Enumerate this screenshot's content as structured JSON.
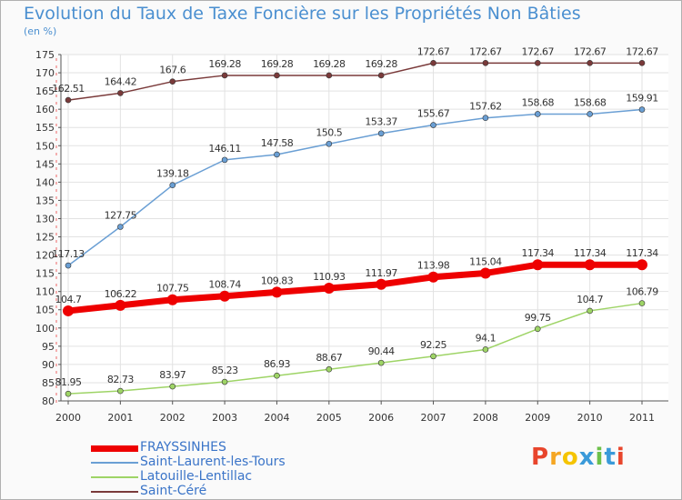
{
  "title": "Evolution du Taux de Taxe Foncière sur les Propriétés Non Bâties",
  "unit_label": "(en %)",
  "logo": {
    "text": "Proxiti",
    "letters": [
      {
        "ch": "P",
        "color": "#e8452c"
      },
      {
        "ch": "r",
        "color": "#f5a623"
      },
      {
        "ch": "o",
        "color": "#f5c400"
      },
      {
        "ch": "x",
        "color": "#3a9ad9"
      },
      {
        "ch": "i",
        "color": "#6cc04a"
      },
      {
        "ch": "t",
        "color": "#3a9ad9"
      },
      {
        "ch": "i",
        "color": "#e8452c"
      }
    ]
  },
  "chart_data": {
    "type": "line",
    "title": "Evolution du Taux de Taxe Foncière sur les Propriétés Non Bâties",
    "ylabel": "(en %)",
    "xlabel": "",
    "x": [
      "2000",
      "2001",
      "2002",
      "2003",
      "2004",
      "2005",
      "2006",
      "2007",
      "2008",
      "2009",
      "2010",
      "2011"
    ],
    "ylim": [
      80,
      175
    ],
    "yticks": [
      80,
      85,
      90,
      95,
      100,
      105,
      110,
      115,
      120,
      125,
      130,
      135,
      140,
      145,
      150,
      155,
      160,
      165,
      170,
      175
    ],
    "grid": true,
    "legend_position": "bottom-left",
    "series": [
      {
        "name": "FRAYSSINHES",
        "color": "#ee0000",
        "values": [
          104.7,
          106.22,
          107.75,
          108.74,
          109.83,
          110.93,
          111.97,
          113.98,
          115.04,
          117.34,
          117.34,
          117.34
        ],
        "labels": [
          "104.7",
          "106.22",
          "107.75",
          "108.74",
          "109.83",
          "110.93",
          "111.97",
          "113.98",
          "115.04",
          "117.34",
          "117.34",
          "117.34"
        ]
      },
      {
        "name": "Saint-Laurent-les-Tours",
        "color": "#6a9fd4",
        "values": [
          117.13,
          127.75,
          139.18,
          146.11,
          147.58,
          150.5,
          153.37,
          155.67,
          157.62,
          158.68,
          158.68,
          159.91
        ],
        "labels": [
          "117.13",
          "127.75",
          "139.18",
          "146.11",
          "147.58",
          "150.5",
          "153.37",
          "155.67",
          "157.62",
          "158.68",
          "158.68",
          "159.91"
        ]
      },
      {
        "name": "Latouille-Lentillac",
        "color": "#9ed466",
        "values": [
          81.95,
          82.73,
          83.97,
          85.23,
          86.93,
          88.67,
          90.44,
          92.25,
          94.1,
          99.75,
          104.7,
          106.79
        ],
        "labels": [
          "81.95",
          "82.73",
          "83.97",
          "85.23",
          "86.93",
          "88.67",
          "90.44",
          "92.25",
          "94.1",
          "99.75",
          "104.7",
          "106.79"
        ]
      },
      {
        "name": "Saint-Céré",
        "color": "#7a3a3a",
        "values": [
          162.51,
          164.42,
          167.6,
          169.28,
          169.28,
          169.28,
          169.28,
          172.67,
          172.67,
          172.67,
          172.67,
          172.67
        ],
        "labels": [
          "162.51",
          "164.42",
          "167.6",
          "169.28",
          "169.28",
          "169.28",
          "169.28",
          "172.67",
          "172.67",
          "172.67",
          "172.67",
          "172.67"
        ]
      }
    ]
  }
}
